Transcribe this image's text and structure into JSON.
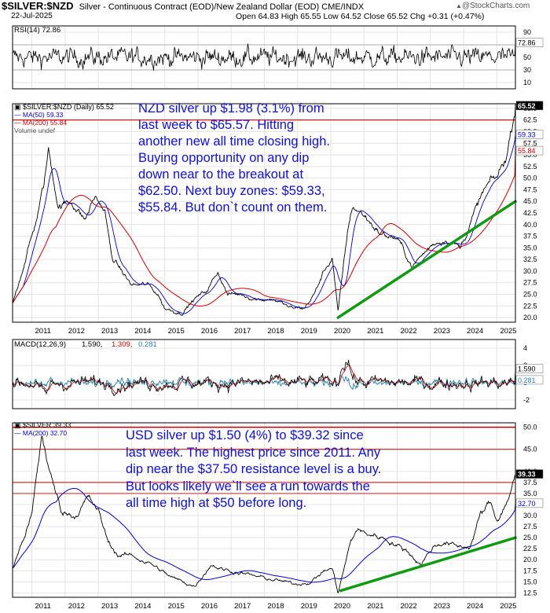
{
  "header": {
    "symbol": "$SILVER:$NZD",
    "description": "Silver - Continuous Contract (EOD)/New Zealand Dollar (EOD) CME/INDX",
    "date": "22-Jul-2025",
    "ohlc": "Open 64.83  High 65.55  Low 64.52  Close 65.52  Chg +0.31 (+0.47%)",
    "watermark": "@StockCharts.com",
    "watermark_icon": "triangle-up-icon"
  },
  "notes": {
    "nzd": "NZD silver up $1.98 (3.1%) from\nlast week to $65.57. Hitting\nanother new all time closing high.\nBuying opportunity on any dip\ndown near to the breakout at\n$62.50. Next buy zones: $59.33,\n$55.84. But don`t count on them.",
    "usd": "USD silver up $1.50 (4%) to $39.32 since\nlast week. The highest price since 2011. Any\ndip near the $37.50 resistance level is a buy.\nBut looks likely we`ll see a run towards the\nall time high at $50 before long."
  },
  "colors": {
    "price": "#000000",
    "ma50": "#0000cc",
    "ma200": "#cc0000",
    "trendline": "#119911",
    "resistance": "#cc0000",
    "note_text": "#1010d0",
    "macd_signal": "#cc0000",
    "macd_hist": "#2a7fa6"
  },
  "chart_data": [
    {
      "type": "line",
      "panel": "RSI",
      "legend": "RSI(14) 72.86",
      "last_value": "72.86",
      "y_ticks": [
        "90",
        "70",
        "50",
        "30",
        "10"
      ],
      "ylim": [
        0,
        100
      ],
      "reference_lines": [
        70,
        30
      ]
    },
    {
      "type": "line",
      "panel": "NZD price",
      "legend": [
        "$SILVER:$NZD (Daily) 65.52",
        "MA(50) 59.33",
        "MA(200) 55.84",
        "Volume undef"
      ],
      "x_ticks": [
        "2011",
        "2012",
        "2013",
        "2014",
        "2015",
        "2016",
        "2017",
        "2018",
        "2019",
        "2020",
        "2021",
        "2022",
        "2023",
        "2024",
        "2025"
      ],
      "y_ticks": [
        "65.0",
        "62.5",
        "60.0",
        "57.5",
        "55.0",
        "52.5",
        "50.0",
        "47.5",
        "45.0",
        "42.5",
        "40.0",
        "37.5",
        "35.0",
        "32.5",
        "30.0",
        "27.5",
        "25.0",
        "22.5",
        "20.0"
      ],
      "ylim": [
        19,
        66
      ],
      "price_labels": [
        "65.52",
        "59.33",
        "55.84"
      ],
      "anchors": {
        "x": [
          2010.42,
          2011.1,
          2011.35,
          2011.5,
          2011.8,
          2012.2,
          2012.6,
          2012.9,
          2013.2,
          2013.4,
          2013.7,
          2014.0,
          2014.5,
          2014.8,
          2015.0,
          2015.5,
          2015.9,
          2016.3,
          2016.6,
          2016.9,
          2017.3,
          2017.8,
          2018.3,
          2018.8,
          2019.2,
          2019.5,
          2019.8,
          2020.05,
          2020.22,
          2020.5,
          2020.65,
          2021.0,
          2021.5,
          2022.0,
          2022.45,
          2022.7,
          2023.1,
          2023.5,
          2023.9,
          2024.3,
          2024.6,
          2024.8,
          2025.0,
          2025.3,
          2025.56
        ],
        "y": [
          23,
          40,
          48,
          56,
          44,
          45,
          41,
          46,
          43,
          33,
          30,
          27,
          27,
          25,
          22,
          21,
          24,
          26,
          30,
          25,
          25,
          24,
          24,
          22,
          22,
          25,
          30,
          33,
          21,
          38,
          44,
          42,
          38,
          37,
          31,
          33,
          36,
          37,
          35,
          42,
          47,
          49,
          50,
          55,
          65.5
        ]
      },
      "ma50_last": 59.33,
      "ma200_last": 55.84,
      "resistance": 62.5,
      "trendline": {
        "x": [
          2020.22,
          2025.56
        ],
        "y": [
          20,
          45
        ]
      }
    },
    {
      "type": "line",
      "panel": "MACD",
      "legend": [
        "MACD(12,26,9)",
        "1.590,",
        "1.309,",
        "0.281"
      ],
      "macd": 1.59,
      "signal": 1.309,
      "histogram": 0.281,
      "y_ticks": [
        "4",
        "2",
        "0",
        "-2"
      ],
      "ylim": [
        -3,
        5
      ],
      "price_labels": [
        "1.590",
        "0.281"
      ]
    },
    {
      "type": "line",
      "panel": "USD price",
      "legend": [
        "$SILVER 39.33",
        "MA(200) 32.70"
      ],
      "x_ticks": [
        "2011",
        "2012",
        "2013",
        "2014",
        "2015",
        "2016",
        "2017",
        "2018",
        "2019",
        "2020",
        "2021",
        "2022",
        "2023",
        "2024",
        "2025"
      ],
      "y_ticks": [
        "50.0",
        "45.0",
        "40.0",
        "37.5",
        "35.0",
        "32.5",
        "30.0",
        "27.5",
        "25.0",
        "22.5",
        "20.0",
        "17.5",
        "15.0",
        "12.5"
      ],
      "ylim": [
        11.5,
        51
      ],
      "price_labels": [
        "39.33",
        "32.70"
      ],
      "anchors": {
        "x": [
          2010.42,
          2011.0,
          2011.3,
          2011.6,
          2011.9,
          2012.3,
          2012.7,
          2013.0,
          2013.3,
          2013.6,
          2014.0,
          2014.6,
          2015.2,
          2015.9,
          2016.4,
          2016.7,
          2017.3,
          2017.9,
          2018.6,
          2018.9,
          2019.4,
          2019.8,
          2020.05,
          2020.22,
          2020.6,
          2020.8,
          2021.0,
          2021.6,
          2022.3,
          2022.7,
          2023.1,
          2023.4,
          2023.8,
          2024.2,
          2024.5,
          2024.8,
          2025.0,
          2025.3,
          2025.56
        ],
        "y": [
          18,
          30,
          48,
          38,
          31,
          30,
          34,
          31,
          24,
          21,
          21,
          19,
          16,
          14,
          19,
          18,
          17,
          16,
          15,
          14.5,
          15,
          17.5,
          18,
          12.5,
          24,
          27,
          26,
          25,
          22,
          19,
          23,
          24,
          23,
          23,
          30,
          33,
          29,
          33,
          39.3
        ]
      },
      "ma200_last": 32.7,
      "resistance": [
        50,
        45,
        37.5
      ],
      "support_line": 35,
      "trendline": {
        "x": [
          2020.3,
          2025.56
        ],
        "y": [
          13,
          25
        ]
      }
    }
  ]
}
